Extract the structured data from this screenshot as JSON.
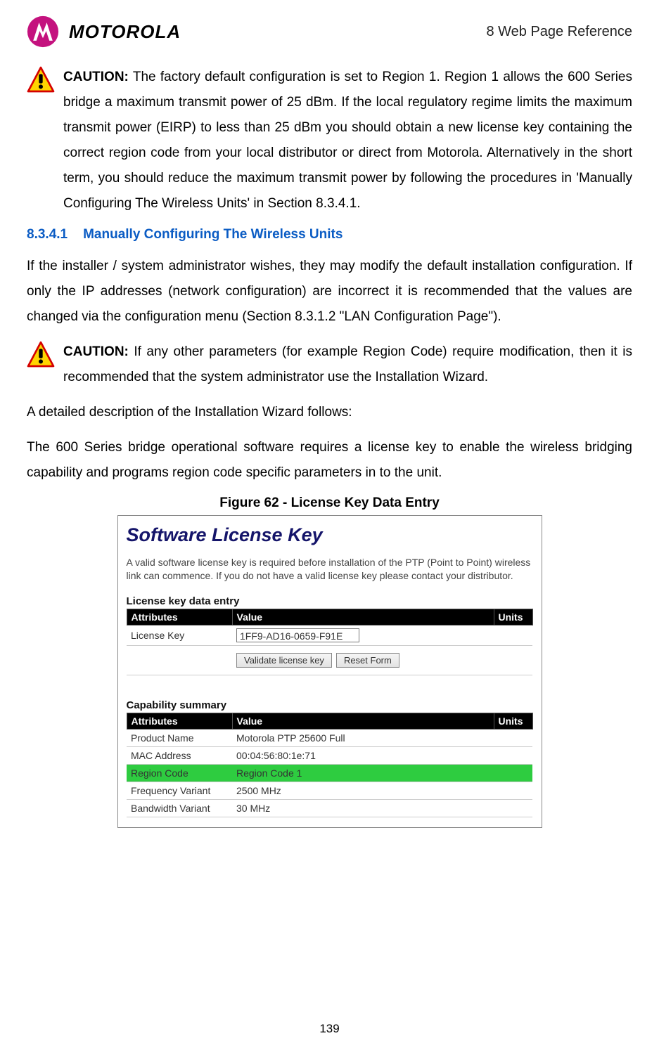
{
  "header": {
    "brand": "MOTOROLA",
    "chapter": "8 Web Page Reference"
  },
  "caution1": {
    "label": "CAUTION:",
    "text": " The factory default configuration is set to Region 1. Region 1 allows the 600 Series bridge a maximum transmit power of 25 dBm. If the local regulatory regime limits the maximum transmit power (EIRP) to less than 25 dBm you should obtain a new license key containing the correct region code from your local distributor or direct from Motorola. Alternatively in the short term, you should reduce the maximum transmit power by following the procedures in  'Manually Configuring The Wireless Units' in Section 8.3.4.1."
  },
  "section": {
    "number": "8.3.4.1",
    "title": "Manually Configuring The Wireless Units",
    "para1": "If the installer / system administrator wishes, they may modify the default installation configuration. If only the IP addresses (network configuration) are incorrect it is recommended that the values are changed via the configuration menu (Section 8.3.1.2 \"LAN Configuration Page\")."
  },
  "caution2": {
    "label": "CAUTION:",
    "text": " If any other parameters (for example Region Code) require modification, then it is recommended that the system administrator use the Installation Wizard."
  },
  "paras": {
    "p2": "A detailed description of the Installation Wizard follows:",
    "p3": "The 600 Series bridge operational software requires a license key to enable the wireless bridging capability and programs region code specific parameters in to the unit."
  },
  "figure": {
    "caption": "Figure 62 - License Key Data Entry",
    "title": "Software License Key",
    "desc": "A valid software license key is required before installation of the PTP (Point to Point) wireless link can commence. If you do not have a valid license key please contact your distributor.",
    "entryLabel": "License key data entry",
    "headers": {
      "attr": "Attributes",
      "val": "Value",
      "units": "Units"
    },
    "licenseRow": {
      "attr": "License Key",
      "val": "1FF9-AD16-0659-F91E"
    },
    "buttons": {
      "validate": "Validate license key",
      "reset": "Reset Form"
    },
    "capLabel": "Capability summary",
    "capRows": [
      {
        "attr": "Product Name",
        "val": "Motorola PTP 25600 Full",
        "hl": false
      },
      {
        "attr": "MAC Address",
        "val": "00:04:56:80:1e:71",
        "hl": false
      },
      {
        "attr": "Region Code",
        "val": "Region Code 1",
        "hl": true
      },
      {
        "attr": "Frequency Variant",
        "val": "2500 MHz",
        "hl": false
      },
      {
        "attr": "Bandwidth Variant",
        "val": "30 MHz",
        "hl": false
      }
    ]
  },
  "pageNumber": "139",
  "colors": {
    "link": "#0b5cc4",
    "logoFill": "#c4127e",
    "highlight": "#2ecc40"
  }
}
